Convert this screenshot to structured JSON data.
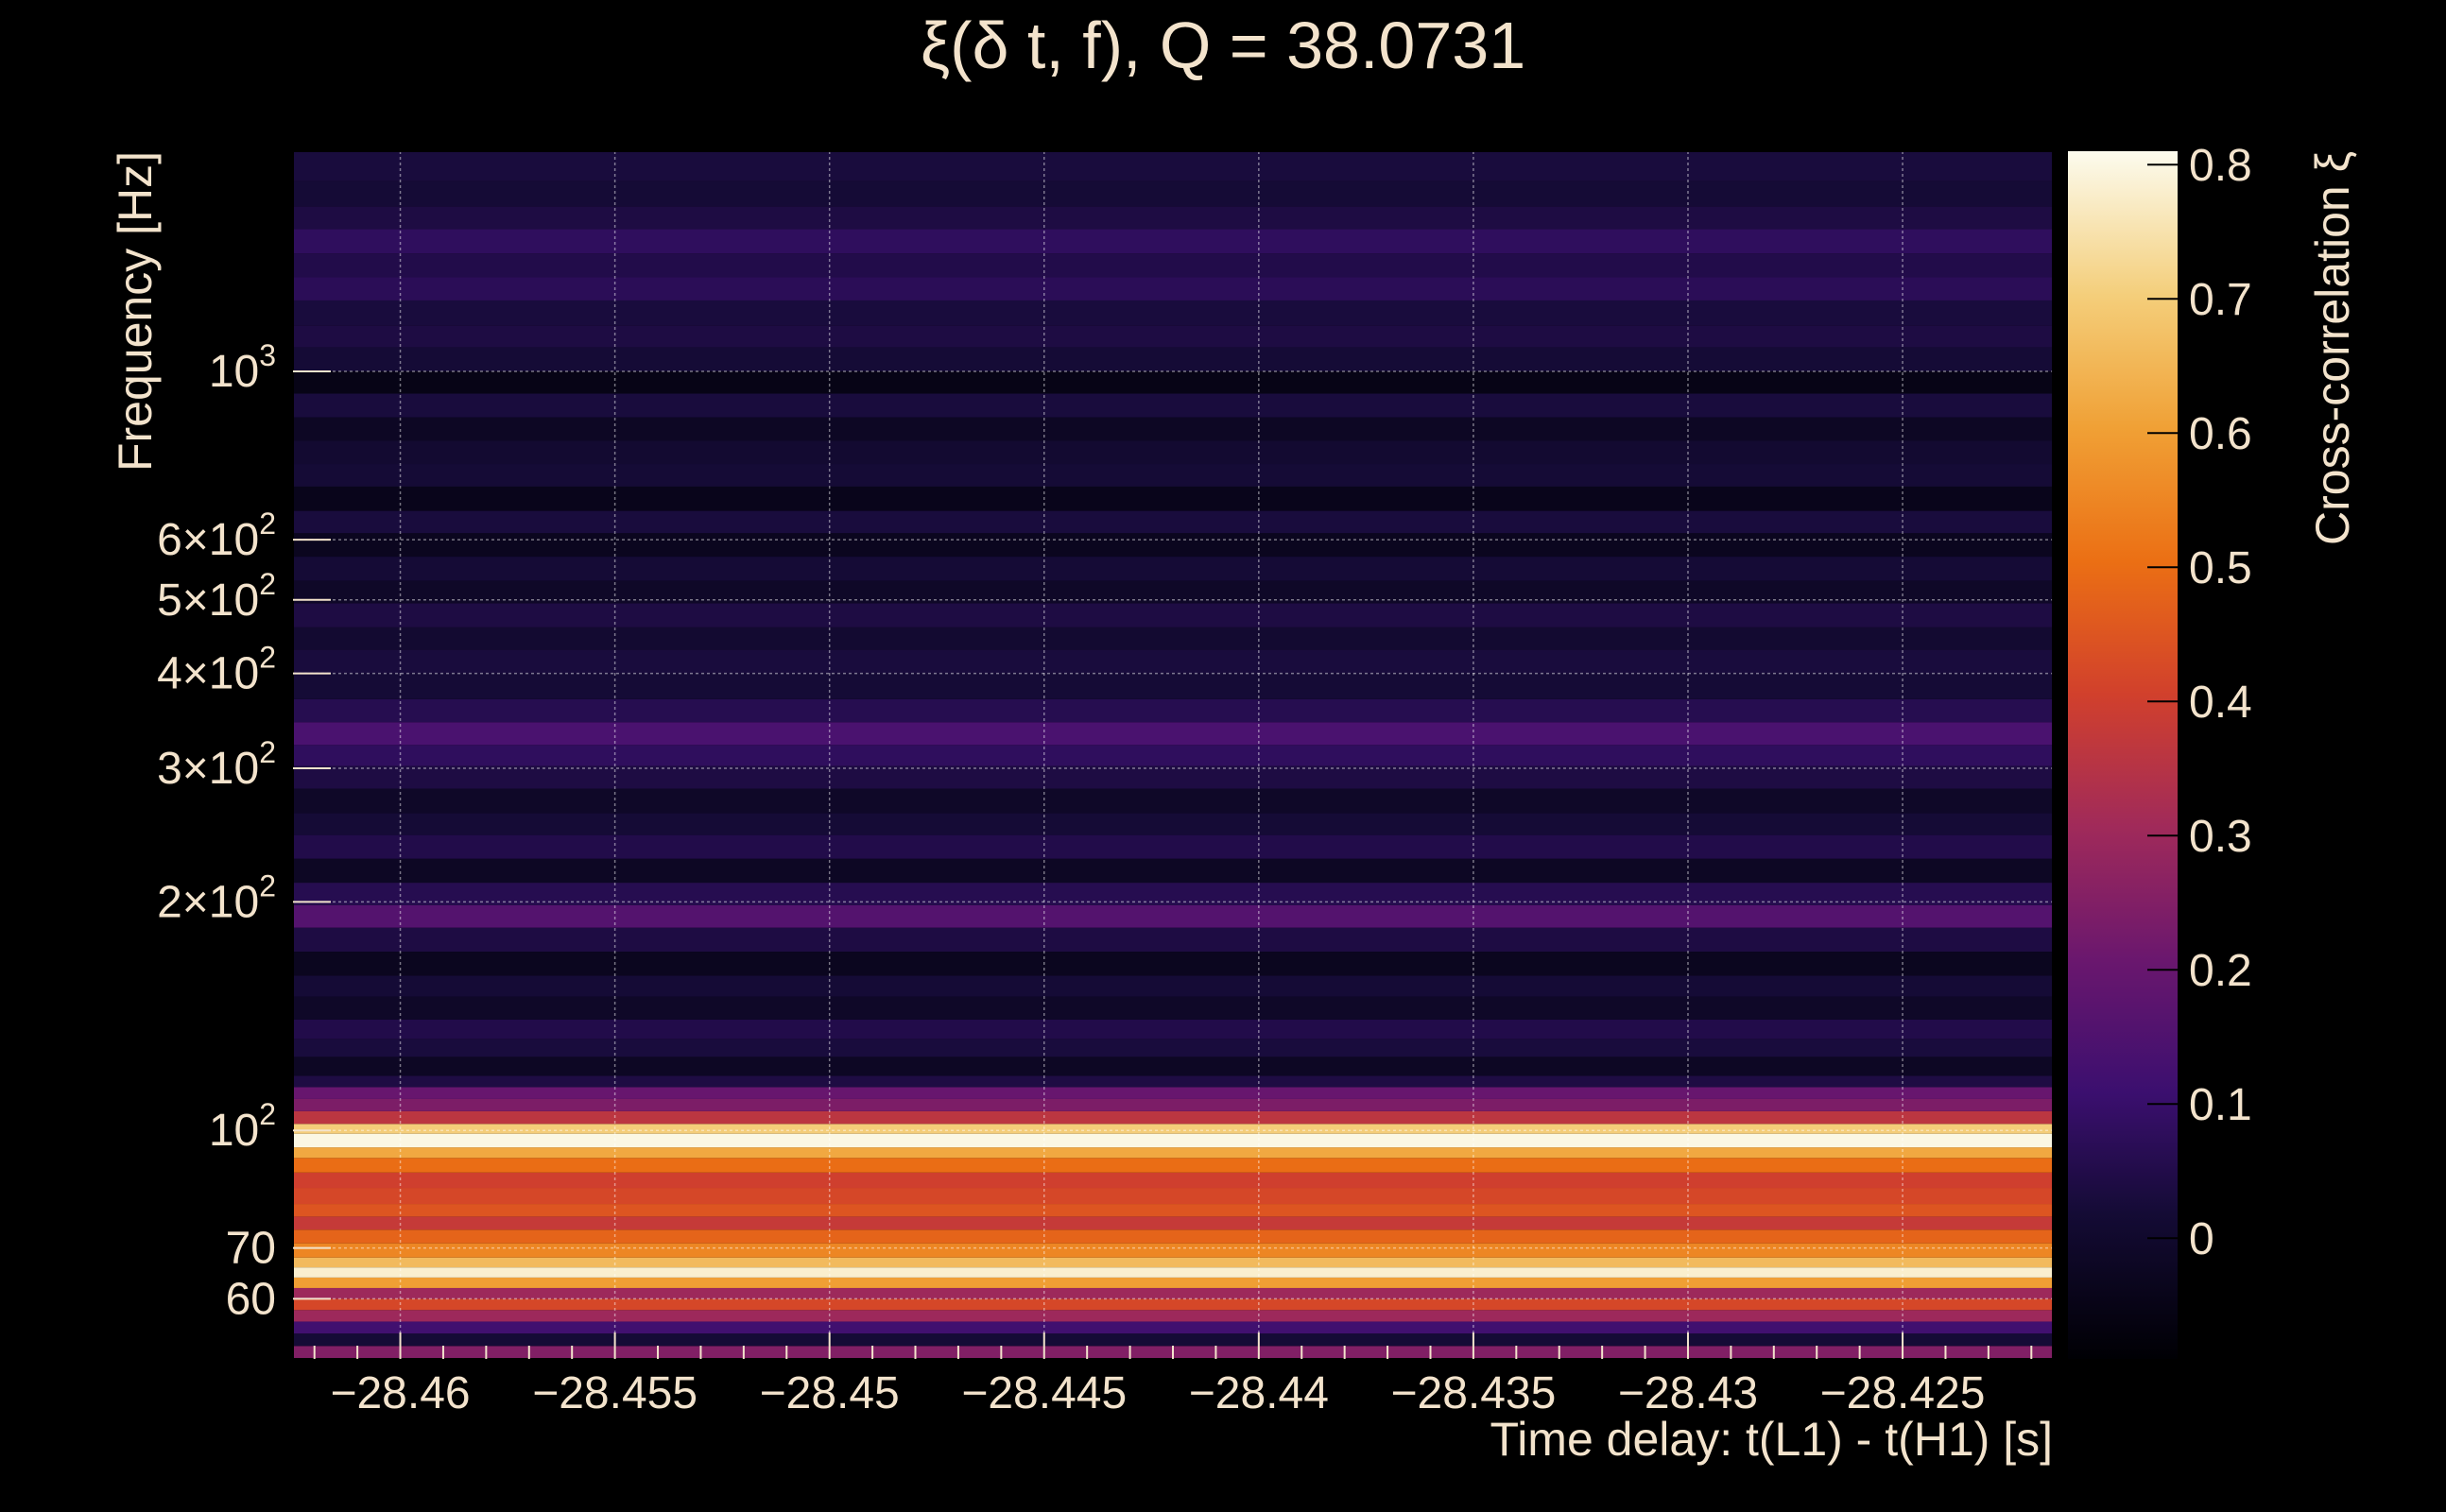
{
  "chart_data": {
    "type": "heatmap",
    "title": "ξ(δ t, f), Q = 38.0731",
    "xlabel": "Time delay: t(L1) - t(H1) [s]",
    "ylabel": "Frequency [Hz]",
    "colorbar_label": "Cross-correlation ξ",
    "x_range": [
      -28.4625,
      -28.4215
    ],
    "y_range": [
      50,
      1950
    ],
    "y_scale": "log",
    "color_range": [
      -0.09,
      0.81
    ],
    "grid": true,
    "x_ticks": [
      {
        "value": -28.46,
        "label": "−28.46"
      },
      {
        "value": -28.455,
        "label": "−28.455"
      },
      {
        "value": -28.45,
        "label": "−28.45"
      },
      {
        "value": -28.445,
        "label": "−28.445"
      },
      {
        "value": -28.44,
        "label": "−28.44"
      },
      {
        "value": -28.435,
        "label": "−28.435"
      },
      {
        "value": -28.43,
        "label": "−28.43"
      },
      {
        "value": -28.425,
        "label": "−28.425"
      }
    ],
    "y_ticks": [
      {
        "value": 60,
        "label": "60"
      },
      {
        "value": 70,
        "label": "70"
      },
      {
        "value": 100,
        "base": "10",
        "exp": "2"
      },
      {
        "value": 200,
        "base": "2×10",
        "exp": "2"
      },
      {
        "value": 300,
        "base": "3×10",
        "exp": "2"
      },
      {
        "value": 400,
        "base": "4×10",
        "exp": "2"
      },
      {
        "value": 500,
        "base": "5×10",
        "exp": "2"
      },
      {
        "value": 600,
        "base": "6×10",
        "exp": "2"
      },
      {
        "value": 1000,
        "base": "10",
        "exp": "3"
      }
    ],
    "colorbar_ticks": [
      {
        "value": 0,
        "label": "0"
      },
      {
        "value": 0.1,
        "label": "0.1"
      },
      {
        "value": 0.2,
        "label": "0.2"
      },
      {
        "value": 0.3,
        "label": "0.3"
      },
      {
        "value": 0.4,
        "label": "0.4"
      },
      {
        "value": 0.5,
        "label": "0.5"
      },
      {
        "value": 0.6,
        "label": "0.6"
      },
      {
        "value": 0.7,
        "label": "0.7"
      },
      {
        "value": 0.8,
        "label": "0.8"
      }
    ],
    "frequency_bands": [
      {
        "f_low": 50,
        "f_high": 52,
        "xi": 0.25
      },
      {
        "f_low": 52,
        "f_high": 54,
        "xi": 0.02
      },
      {
        "f_low": 54,
        "f_high": 56,
        "xi": 0.12
      },
      {
        "f_low": 56,
        "f_high": 58,
        "xi": 0.3
      },
      {
        "f_low": 58,
        "f_high": 60,
        "xi": 0.42
      },
      {
        "f_low": 60,
        "f_high": 62,
        "xi": 0.3
      },
      {
        "f_low": 62,
        "f_high": 64,
        "xi": 0.6
      },
      {
        "f_low": 64,
        "f_high": 66,
        "xi": 0.78
      },
      {
        "f_low": 66,
        "f_high": 68,
        "xi": 0.66
      },
      {
        "f_low": 68,
        "f_high": 71,
        "xi": 0.55
      },
      {
        "f_low": 71,
        "f_high": 74,
        "xi": 0.48
      },
      {
        "f_low": 74,
        "f_high": 77,
        "xi": 0.38
      },
      {
        "f_low": 77,
        "f_high": 80,
        "xi": 0.45
      },
      {
        "f_low": 80,
        "f_high": 84,
        "xi": 0.42
      },
      {
        "f_low": 84,
        "f_high": 88,
        "xi": 0.4
      },
      {
        "f_low": 88,
        "f_high": 92,
        "xi": 0.5
      },
      {
        "f_low": 92,
        "f_high": 95,
        "xi": 0.62
      },
      {
        "f_low": 95,
        "f_high": 99,
        "xi": 0.8
      },
      {
        "f_low": 99,
        "f_high": 102,
        "xi": 0.7
      },
      {
        "f_low": 102,
        "f_high": 106,
        "xi": 0.36
      },
      {
        "f_low": 106,
        "f_high": 110,
        "xi": 0.24
      },
      {
        "f_low": 110,
        "f_high": 114,
        "xi": 0.2
      },
      {
        "f_low": 114,
        "f_high": 118,
        "xi": 0.04
      },
      {
        "f_low": 118,
        "f_high": 125,
        "xi": -0.02
      },
      {
        "f_low": 125,
        "f_high": 132,
        "xi": 0.03
      },
      {
        "f_low": 132,
        "f_high": 140,
        "xi": 0.05
      },
      {
        "f_low": 140,
        "f_high": 150,
        "xi": -0.01
      },
      {
        "f_low": 150,
        "f_high": 160,
        "xi": 0.02
      },
      {
        "f_low": 160,
        "f_high": 172,
        "xi": -0.03
      },
      {
        "f_low": 172,
        "f_high": 185,
        "xi": 0.04
      },
      {
        "f_low": 185,
        "f_high": 198,
        "xi": 0.16
      },
      {
        "f_low": 198,
        "f_high": 212,
        "xi": 0.06
      },
      {
        "f_low": 212,
        "f_high": 228,
        "xi": -0.02
      },
      {
        "f_low": 228,
        "f_high": 245,
        "xi": 0.05
      },
      {
        "f_low": 245,
        "f_high": 262,
        "xi": 0.02
      },
      {
        "f_low": 262,
        "f_high": 282,
        "xi": -0.01
      },
      {
        "f_low": 282,
        "f_high": 302,
        "xi": 0.04
      },
      {
        "f_low": 302,
        "f_high": 322,
        "xi": 0.08
      },
      {
        "f_low": 322,
        "f_high": 345,
        "xi": 0.14
      },
      {
        "f_low": 345,
        "f_high": 370,
        "xi": 0.06
      },
      {
        "f_low": 370,
        "f_high": 400,
        "xi": 0.02
      },
      {
        "f_low": 400,
        "f_high": 430,
        "xi": 0.03
      },
      {
        "f_low": 430,
        "f_high": 460,
        "xi": 0.01
      },
      {
        "f_low": 460,
        "f_high": 495,
        "xi": 0.04
      },
      {
        "f_low": 495,
        "f_high": 530,
        "xi": -0.01
      },
      {
        "f_low": 530,
        "f_high": 570,
        "xi": 0.02
      },
      {
        "f_low": 570,
        "f_high": 612,
        "xi": -0.03
      },
      {
        "f_low": 612,
        "f_high": 655,
        "xi": 0.03
      },
      {
        "f_low": 655,
        "f_high": 705,
        "xi": -0.04
      },
      {
        "f_low": 705,
        "f_high": 755,
        "xi": 0.02
      },
      {
        "f_low": 755,
        "f_high": 810,
        "xi": 0.01
      },
      {
        "f_low": 810,
        "f_high": 870,
        "xi": -0.02
      },
      {
        "f_low": 870,
        "f_high": 935,
        "xi": 0.03
      },
      {
        "f_low": 935,
        "f_high": 1000,
        "xi": -0.05
      },
      {
        "f_low": 1000,
        "f_high": 1075,
        "xi": 0.02
      },
      {
        "f_low": 1075,
        "f_high": 1150,
        "xi": 0.04
      },
      {
        "f_low": 1150,
        "f_high": 1240,
        "xi": 0.03
      },
      {
        "f_low": 1240,
        "f_high": 1330,
        "xi": 0.07
      },
      {
        "f_low": 1330,
        "f_high": 1430,
        "xi": 0.05
      },
      {
        "f_low": 1430,
        "f_high": 1540,
        "xi": 0.08
      },
      {
        "f_low": 1540,
        "f_high": 1650,
        "xi": 0.04
      },
      {
        "f_low": 1650,
        "f_high": 1780,
        "xi": 0.02
      },
      {
        "f_low": 1780,
        "f_high": 1950,
        "xi": 0.03
      }
    ]
  }
}
